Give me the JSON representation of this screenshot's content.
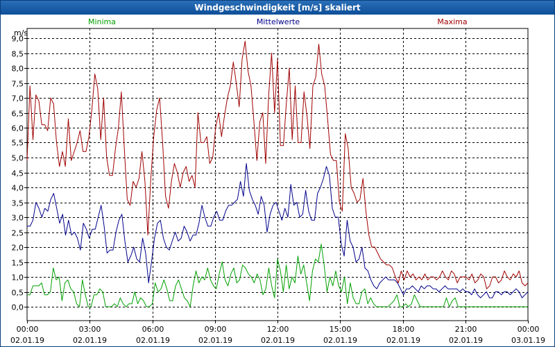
{
  "window": {
    "title": "Windgeschwindigkeit [m/s] skaliert"
  },
  "chart_data": {
    "type": "line",
    "title": "Windgeschwindigkeit [m/s] skaliert",
    "ylabel": "m/s",
    "ylim": [
      0,
      9
    ],
    "xlim_hours": [
      0,
      24
    ],
    "yticks": [
      "0,0",
      "0,5",
      "1,0",
      "1,5",
      "2,0",
      "2,5",
      "3,0",
      "3,5",
      "4,0",
      "4,5",
      "5,0",
      "5,5",
      "6,0",
      "6,5",
      "7,0",
      "7,5",
      "8,0",
      "8,5",
      "9,0"
    ],
    "xticks": [
      {
        "time": "00:00",
        "date": "02.01.19"
      },
      {
        "time": "03:00",
        "date": "02.01.19"
      },
      {
        "time": "06:00",
        "date": "02.01.19"
      },
      {
        "time": "09:00",
        "date": "02.01.19"
      },
      {
        "time": "12:00",
        "date": "02.01.19"
      },
      {
        "time": "15:00",
        "date": "02.01.19"
      },
      {
        "time": "18:00",
        "date": "02.01.19"
      },
      {
        "time": "21:00",
        "date": "02.01.19"
      },
      {
        "time": "00:00",
        "date": "03.01.19"
      }
    ],
    "grid": true,
    "legend_position": "top",
    "series": [
      {
        "name": "Maxima",
        "color": "#a00000",
        "values": [
          4.9,
          7.4,
          5.6,
          7.1,
          6.9,
          6.1,
          6.1,
          5.9,
          7.0,
          6.8,
          5.5,
          4.7,
          5.2,
          4.7,
          6.3,
          4.9,
          5.2,
          5.5,
          5.9,
          5.2,
          5.2,
          5.7,
          6.6,
          7.8,
          7.3,
          5.6,
          7.0,
          5.0,
          4.4,
          4.4,
          5.3,
          6.0,
          7.2,
          5.3,
          3.6,
          3.4,
          4.2,
          4.0,
          4.3,
          5.2,
          4.2,
          2.4,
          4.3,
          5.7,
          6.6,
          7.0,
          5.5,
          3.7,
          3.3,
          4.2,
          4.8,
          4.5,
          4.0,
          4.5,
          4.7,
          4.2,
          4.4,
          4.0,
          6.5,
          5.5,
          5.5,
          5.7,
          4.8,
          5.0,
          6.0,
          6.5,
          5.7,
          6.4,
          7.0,
          7.4,
          8.2,
          7.5,
          6.7,
          8.3,
          8.9,
          7.9,
          7.4,
          6.2,
          4.9,
          6.2,
          6.5,
          4.8,
          7.1,
          8.5,
          6.5,
          8.3,
          5.4,
          5.4,
          6.8,
          8.0,
          5.6,
          7.4,
          5.5,
          5.5,
          7.2,
          6.4,
          5.3,
          7.4,
          7.7,
          8.8,
          7.8,
          7.4,
          6.3,
          5.1,
          4.9,
          4.9,
          3.5,
          3.2,
          5.8,
          5.3,
          4.0,
          3.8,
          3.5,
          3.6,
          4.3,
          3.2,
          2.4,
          2.0,
          2.0,
          1.8,
          1.6,
          1.5,
          1.4,
          1.4,
          1.3,
          1.0,
          0.8,
          1.2,
          0.9,
          1.2,
          1.0,
          1.1,
          0.9,
          1.0,
          0.9,
          1.1,
          0.9,
          1.0,
          1.0,
          0.9,
          1.0,
          1.2,
          1.0,
          0.9,
          1.2,
          1.1,
          0.8,
          1.0,
          1.0,
          1.0,
          0.9,
          1.1,
          0.8,
          0.9,
          1.1,
          1.0,
          0.6,
          0.7,
          1.0,
          1.0,
          0.8,
          0.9,
          1.2,
          1.0,
          0.9,
          1.1,
          1.0,
          1.2,
          0.8,
          0.7,
          0.8
        ]
      },
      {
        "name": "Mittelwerte",
        "color": "#00008b",
        "values": [
          2.7,
          2.7,
          2.9,
          3.5,
          3.3,
          3.0,
          3.3,
          3.2,
          3.6,
          3.8,
          3.3,
          2.8,
          3.1,
          2.4,
          2.9,
          2.4,
          2.5,
          2.3,
          1.9,
          2.8,
          2.6,
          2.3,
          2.6,
          2.6,
          3.0,
          3.4,
          2.7,
          1.8,
          1.9,
          1.9,
          2.5,
          2.9,
          3.1,
          2.2,
          1.5,
          1.7,
          2.0,
          1.6,
          1.5,
          2.3,
          1.8,
          0.8,
          1.5,
          2.3,
          2.8,
          2.9,
          2.3,
          2.0,
          1.9,
          2.2,
          2.5,
          2.2,
          2.3,
          2.7,
          2.5,
          2.2,
          2.4,
          2.4,
          2.8,
          3.4,
          3.0,
          2.7,
          2.7,
          3.0,
          3.2,
          2.9,
          2.9,
          3.2,
          3.4,
          3.4,
          3.5,
          3.6,
          4.2,
          3.7,
          4.8,
          3.9,
          3.6,
          3.4,
          3.1,
          3.7,
          3.4,
          2.5,
          3.1,
          3.4,
          3.5,
          3.2,
          2.9,
          3.3,
          3.0,
          4.1,
          3.4,
          3.5,
          3.0,
          3.1,
          3.9,
          3.2,
          2.9,
          2.9,
          3.8,
          4.0,
          4.3,
          4.7,
          4.4,
          3.3,
          3.0,
          3.0,
          2.1,
          1.7,
          2.9,
          2.2,
          2.0,
          1.5,
          1.6,
          2.0,
          1.3,
          1.2,
          0.9,
          0.7,
          0.6,
          0.8,
          0.9,
          1.0,
          0.9,
          0.9,
          0.9,
          0.8,
          0.6,
          0.4,
          0.6,
          0.6,
          0.7,
          0.6,
          0.5,
          0.7,
          0.6,
          0.7,
          0.7,
          0.6,
          0.6,
          0.5,
          0.6,
          0.7,
          0.6,
          0.6,
          0.6,
          0.6,
          0.5,
          0.6,
          0.5,
          0.5,
          0.4,
          0.6,
          0.4,
          0.3,
          0.4,
          0.5,
          0.3,
          0.3,
          0.5,
          0.5,
          0.4,
          0.5,
          0.5,
          0.4,
          0.5,
          0.6,
          0.5,
          0.3,
          0.4,
          0.5
        ]
      },
      {
        "name": "Minima",
        "color": "#00a000",
        "values": [
          0.4,
          0.4,
          0.7,
          0.7,
          0.7,
          0.8,
          0.4,
          0.4,
          0.5,
          1.3,
          0.9,
          1.0,
          0.2,
          0.8,
          0.9,
          0.6,
          0.5,
          0.1,
          0.0,
          0.9,
          0.4,
          0.0,
          0.0,
          0.4,
          0.4,
          0.6,
          0.5,
          0.0,
          0.0,
          0.0,
          0.1,
          0.0,
          0.3,
          0.1,
          0.0,
          0.1,
          0.1,
          0.5,
          0.1,
          0.3,
          0.2,
          0.0,
          0.0,
          0.1,
          0.8,
          0.5,
          0.6,
          0.9,
          0.6,
          0.2,
          0.2,
          0.7,
          0.9,
          0.6,
          0.3,
          0.2,
          0.0,
          0.7,
          1.2,
          0.8,
          1.0,
          0.9,
          1.3,
          0.9,
          0.7,
          0.6,
          1.1,
          1.5,
          0.9,
          0.7,
          1.1,
          1.3,
          0.8,
          0.9,
          1.4,
          1.3,
          1.1,
          1.0,
          0.8,
          1.1,
          0.9,
          0.4,
          0.6,
          1.3,
          0.7,
          0.3,
          1.6,
          1.2,
          0.5,
          1.4,
          0.6,
          1.0,
          0.8,
          1.7,
          1.1,
          1.4,
          0.8,
          0.2,
          1.2,
          1.6,
          1.5,
          2.1,
          1.4,
          0.5,
          1.0,
          0.7,
          1.2,
          0.7,
          0.5,
          1.0,
          0.1,
          0.8,
          0.3,
          0.1,
          0.1,
          0.5,
          0.6,
          0.1,
          0.3,
          0.1,
          0.0,
          0.0,
          0.0,
          0.0,
          0.0,
          0.1,
          0.2,
          0.4,
          0.0,
          0.0,
          0.1,
          0.0,
          0.1,
          0.4,
          0.2,
          0.0,
          0.0,
          0.0,
          0.0,
          0.0,
          0.0,
          0.0,
          0.0,
          0.0,
          0.3,
          0.0,
          0.2,
          0.3,
          0.0,
          0.0,
          0.0,
          0.0,
          0.0,
          0.0,
          0.0,
          0.0,
          0.0,
          0.0,
          0.0,
          0.0,
          0.0,
          0.0,
          0.0,
          0.0,
          0.0,
          0.0,
          0.0,
          0.0,
          0.0,
          0.0,
          0.0,
          0.0,
          0.0
        ]
      }
    ]
  }
}
